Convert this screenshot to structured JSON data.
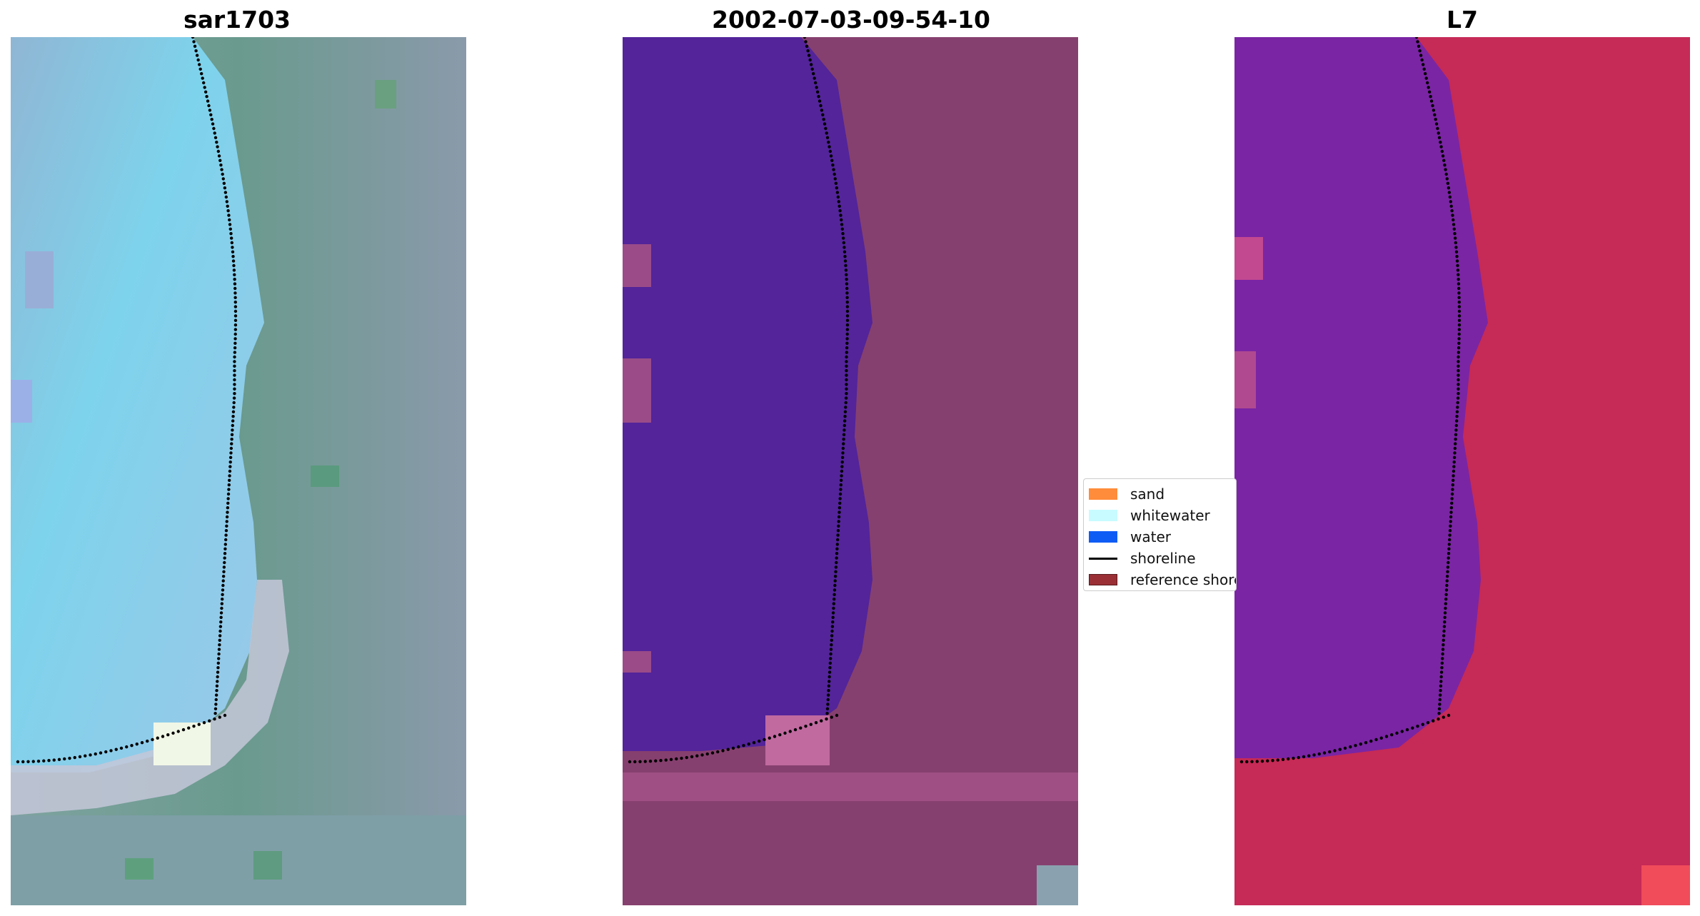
{
  "panels": [
    {
      "title": "sar1703"
    },
    {
      "title": "2002-07-03-09-54-10"
    },
    {
      "title": "L7"
    }
  ],
  "legend": {
    "items": [
      {
        "label": "sand",
        "color": "#ff8c3a",
        "kind": "patch"
      },
      {
        "label": "whitewater",
        "color": "#c8fbff",
        "kind": "patch"
      },
      {
        "label": "water",
        "color": "#0f5cf5",
        "kind": "patch"
      },
      {
        "label": "shoreline",
        "color": "#000000",
        "kind": "line"
      },
      {
        "label": "reference shoreline",
        "color": "#9a2f35",
        "kind": "patch"
      }
    ]
  },
  "colors": {
    "rgb_water": "#7fbfe0",
    "rgb_land": "#6f9890",
    "classified_water": "#52249a",
    "classified_land": "#8a3e72",
    "false_color_water": "#7a25a6",
    "false_color_land": "#c8284e"
  }
}
